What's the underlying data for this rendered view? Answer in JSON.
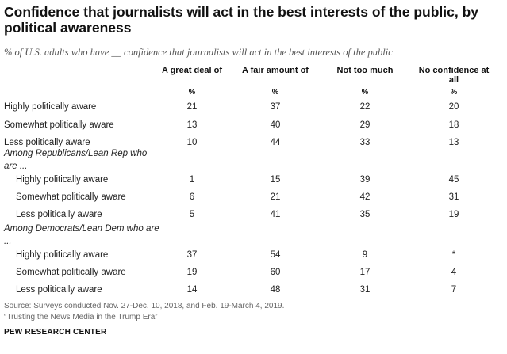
{
  "title": "Confidence that journalists will act in the best interests of the public, by political awareness",
  "subtitle": "% of U.S. adults who have __ confidence that journalists will act in the best interests of the public",
  "columns": [
    {
      "head": "A great deal of",
      "unit": "%"
    },
    {
      "head": "A fair amount of",
      "unit": "%"
    },
    {
      "head": "Not too much",
      "unit": "%"
    },
    {
      "head": "No confidence at all",
      "unit": "%"
    }
  ],
  "chart_data": {
    "type": "table",
    "columns": [
      "A great deal of",
      "A fair amount of",
      "Not too much",
      "No confidence at all"
    ],
    "groups": [
      {
        "label": "",
        "rows": [
          {
            "label": "Highly politically aware",
            "values": [
              "21",
              "37",
              "22",
              "20"
            ]
          },
          {
            "label": "Somewhat politically aware",
            "values": [
              "13",
              "40",
              "29",
              "18"
            ]
          },
          {
            "label": "Less politically aware",
            "values": [
              "10",
              "44",
              "33",
              "13"
            ]
          }
        ]
      },
      {
        "label": "Among Republicans/Lean Rep who are ...",
        "rows": [
          {
            "label": "Highly politically aware",
            "values": [
              "1",
              "15",
              "39",
              "45"
            ]
          },
          {
            "label": "Somewhat politically aware",
            "values": [
              "6",
              "21",
              "42",
              "31"
            ]
          },
          {
            "label": "Less politically aware",
            "values": [
              "5",
              "41",
              "35",
              "19"
            ]
          }
        ]
      },
      {
        "label": "Among Democrats/Lean Dem who are ...",
        "rows": [
          {
            "label": "Highly politically aware",
            "values": [
              "37",
              "54",
              "9",
              "*"
            ]
          },
          {
            "label": "Somewhat politically aware",
            "values": [
              "19",
              "60",
              "17",
              "4"
            ]
          },
          {
            "label": "Less politically aware",
            "values": [
              "14",
              "48",
              "31",
              "7"
            ]
          }
        ]
      }
    ]
  },
  "source_line": "Source: Surveys conducted Nov. 27-Dec. 10, 2018, and Feb. 19-March 4, 2019.",
  "report_line": "“Trusting the News Media in the Trump Era”",
  "brand": "PEW RESEARCH CENTER"
}
